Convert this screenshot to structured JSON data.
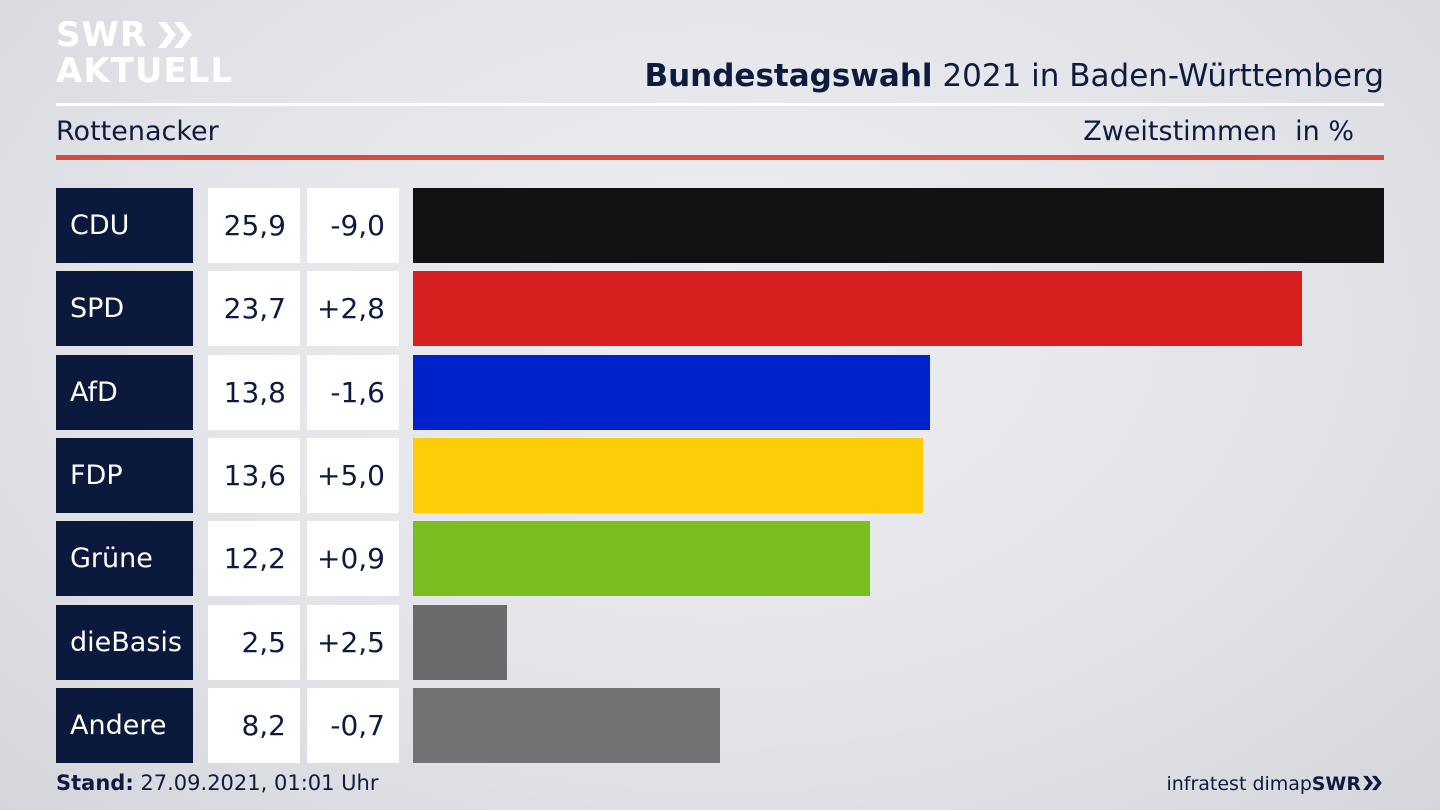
{
  "logo": {
    "line1": "SWR",
    "line2": "AKTUELL"
  },
  "header": {
    "title_bold": "Bundestagswahl",
    "title_rest": " 2021 in Baden-Württemberg",
    "region": "Rottenacker",
    "vote_type": "Zweitstimmen",
    "unit": "in %"
  },
  "footer": {
    "stand_label": "Stand:",
    "stand_value": " 27.09.2021, 01:01 Uhr",
    "source": "infratest dimap",
    "brand": "SWR"
  },
  "colors": {
    "CDU": "#121212",
    "SPD": "#d82020",
    "AfD": "#0022cc",
    "FDP": "#ffcc08",
    "Grüne": "#78be1e",
    "dieBasis": "#6a6a6a",
    "Andere": "#727273"
  },
  "chart_data": {
    "type": "bar",
    "orientation": "horizontal",
    "title": "Bundestagswahl 2021 in Baden-Württemberg",
    "subtitle": "Rottenacker",
    "ylabel": "Zweitstimmen in %",
    "categories": [
      "CDU",
      "SPD",
      "AfD",
      "FDP",
      "Grüne",
      "dieBasis",
      "Andere"
    ],
    "values": [
      25.9,
      23.7,
      13.8,
      13.6,
      12.2,
      2.5,
      8.2
    ],
    "value_labels": [
      "25,9",
      "23,7",
      "13,8",
      "13,6",
      "12,2",
      "2,5",
      "8,2"
    ],
    "diff_labels": [
      "-9,0",
      "+2,8",
      "-1,6",
      "+5,0",
      "+0,9",
      "+2,5",
      "-0,7"
    ],
    "xlim": [
      0,
      25.9
    ],
    "grid": false,
    "legend": "none"
  }
}
